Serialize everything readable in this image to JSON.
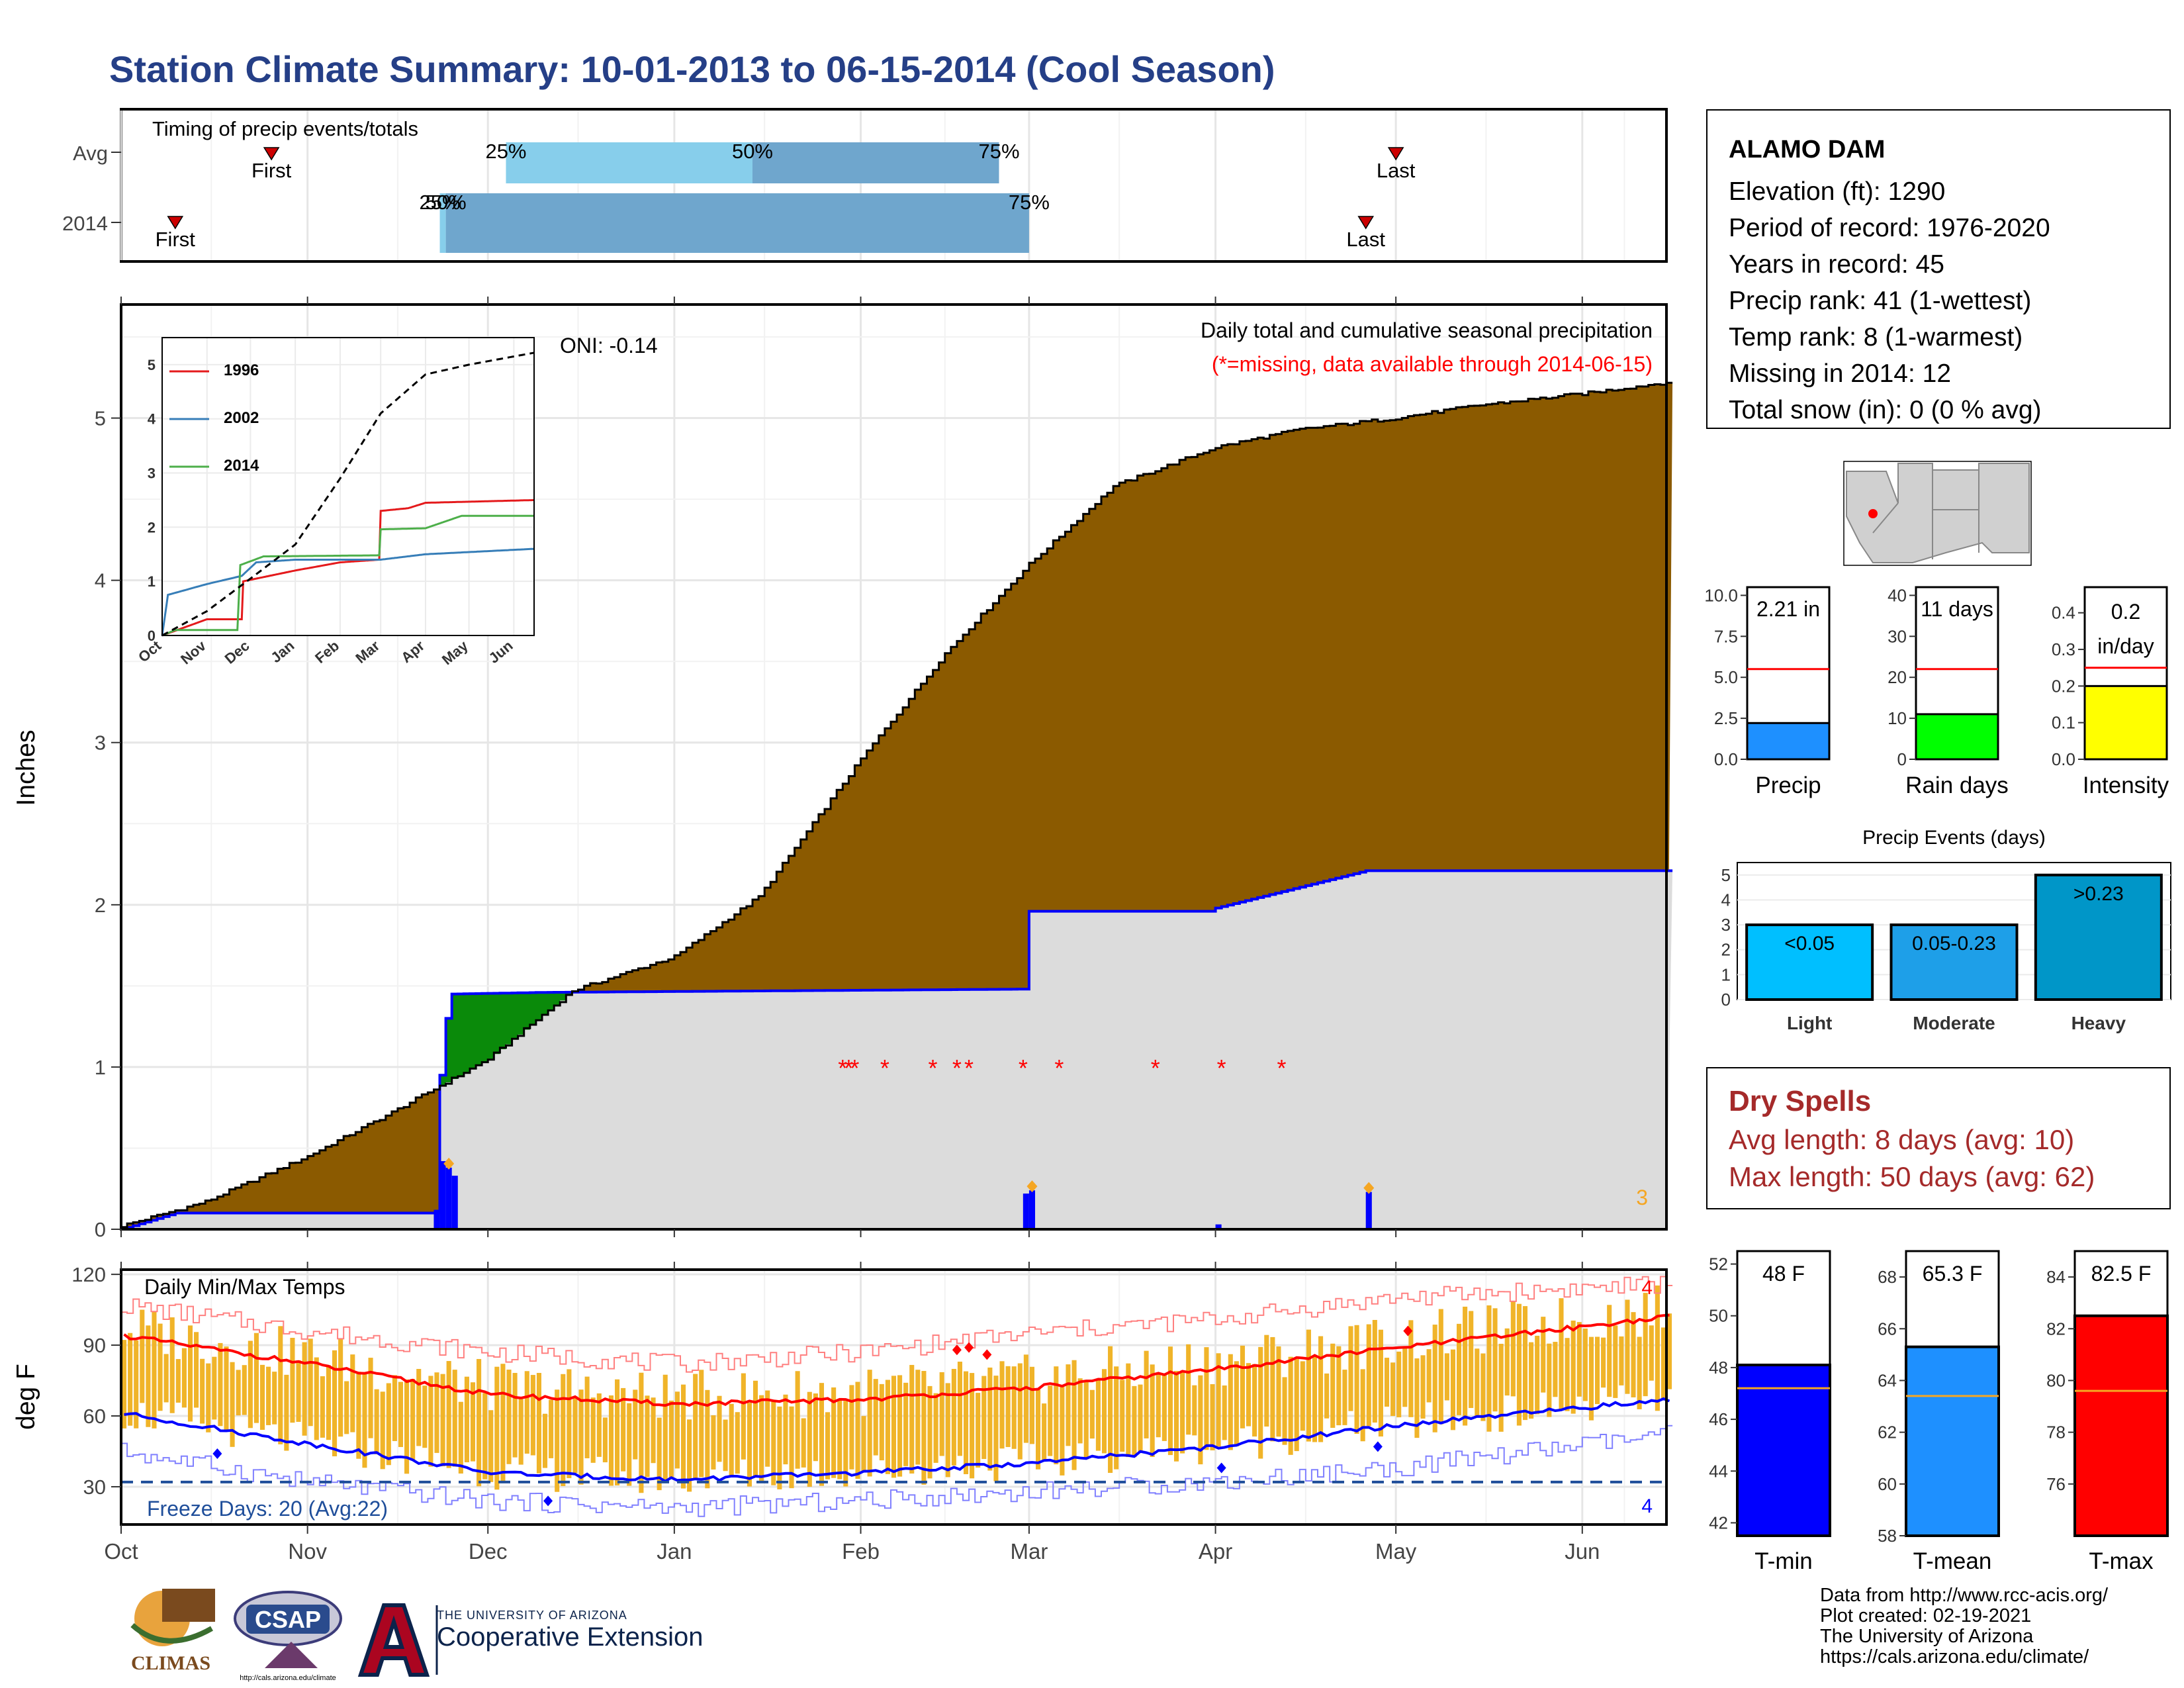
{
  "title": "Station Climate Summary: 10-01-2013 to 06-15-2014 (Cool Season)",
  "timing": {
    "heading": "Timing of precip events/totals",
    "rows": [
      {
        "label": "Avg",
        "first_label": "First",
        "last_label": "Last",
        "first_date": "2013-10-26",
        "last_date": "2014-05-01",
        "p25": "2013-12-04",
        "p50": "2014-01-14",
        "p75": "2014-02-24",
        "p25_label": "25%",
        "p50_label": "50%",
        "p75_label": "75%"
      },
      {
        "label": "2014",
        "first_label": "First",
        "last_label": "Last",
        "first_date": "2013-10-10",
        "last_date": "2014-04-26",
        "p25": "2013-11-23",
        "p50": "2013-11-24",
        "p75": "2014-03-01",
        "p25_label": "25%",
        "p50_label": "50%",
        "p75_label": "75%"
      }
    ]
  },
  "precip_panel": {
    "ylabel": "Inches",
    "yticks": [
      0,
      1,
      2,
      3,
      4,
      5
    ],
    "ylim": [
      0,
      5.7
    ],
    "oni": "ONI: -0.14",
    "legend_line1": "Daily total and cumulative seasonal precipitation",
    "legend_line2": "(*=missing, data available through 2014-06-15)",
    "count_label": "3",
    "colors": {
      "avg_fill": "#8b5a00",
      "surplus_fill": "#0a8a0a",
      "year_fill": "#dcdcdc",
      "year_line": "#0000ff",
      "missing": "#ff0000",
      "max_marker": "#f5a623"
    }
  },
  "inset": {
    "yticks": [
      0,
      1,
      2,
      3,
      4,
      5
    ],
    "xticks": [
      "Oct",
      "Nov",
      "Dec",
      "Jan",
      "Feb",
      "Mar",
      "Apr",
      "May",
      "Jun"
    ],
    "series": [
      {
        "name": "1996",
        "color": "#e41a1c"
      },
      {
        "name": "2002",
        "color": "#377eb8"
      },
      {
        "name": "2014",
        "color": "#4daf4a"
      }
    ]
  },
  "temp_panel": {
    "ylabel": "deg F",
    "heading": "Daily Min/Max Temps",
    "freeze_label": "Freeze Days: 20 (Avg:22)",
    "yticks": [
      30,
      60,
      90,
      120
    ],
    "ylim": [
      14,
      122
    ],
    "freeze_line": 32,
    "max_count": "4",
    "min_count": "4"
  },
  "xaxis": {
    "ticks": [
      "Oct",
      "Nov",
      "Dec",
      "Jan",
      "Feb",
      "Mar",
      "Apr",
      "May",
      "Jun"
    ],
    "start": "2013-10-01",
    "end": "2014-06-15"
  },
  "station": {
    "name": "ALAMO DAM",
    "lines": [
      "Elevation (ft): 1290",
      "Period of record: 1976-2020",
      "Years in record: 45",
      "Precip rank: 41 (1-wettest)",
      "Temp rank: 8 (1-warmest)",
      "Missing in 2014: 12",
      "Total snow (in): 0 (0 % avg)"
    ]
  },
  "summary_bars": [
    {
      "label": "Precip",
      "value_text": "2.21 in",
      "value": 2.21,
      "avg": 5.5,
      "yticks": [
        "0.0",
        "2.5",
        "5.0",
        "7.5",
        "10.0"
      ],
      "ymax": 10.5,
      "color": "#1e90ff"
    },
    {
      "label": "Rain days",
      "value_text": "11 days",
      "value": 11,
      "avg": 22,
      "yticks": [
        "0",
        "10",
        "20",
        "30",
        "40"
      ],
      "ymax": 42,
      "color": "#00ff00"
    },
    {
      "label": "Intensity",
      "value_text": "0.2 in/day",
      "value_text_1": "0.2",
      "value_text_2": "in/day",
      "value": 0.2,
      "avg": 0.25,
      "yticks": [
        "0.0",
        "0.1",
        "0.2",
        "0.3",
        "0.4"
      ],
      "ymax": 0.47,
      "color": "#ffff00"
    }
  ],
  "events": {
    "title": "Precip Events (days)",
    "yticks": [
      0,
      1,
      2,
      3,
      4,
      5
    ],
    "categories": [
      "Light",
      "Moderate",
      "Heavy"
    ],
    "labels": [
      "<0.05",
      "0.05-0.23",
      ">0.23"
    ],
    "values": [
      3,
      3,
      5
    ],
    "colors": [
      "#00bfff",
      "#1e9fe8",
      "#0096c8"
    ]
  },
  "dry_spells": {
    "heading": "Dry Spells",
    "avg_length": "Avg length: 8 days (avg: 10)",
    "max_length": "Max length: 50 days (avg: 62)"
  },
  "temp_bars": [
    {
      "label": "T-min",
      "value_text": "48 F",
      "value": 48.1,
      "avg": 47.2,
      "yticks": [
        42,
        44,
        46,
        48,
        50,
        52
      ],
      "ymin": 41.5,
      "ymax": 52.5,
      "color": "#0000ff"
    },
    {
      "label": "T-mean",
      "value_text": "65.3 F",
      "value": 65.3,
      "avg": 63.4,
      "yticks": [
        58,
        60,
        62,
        64,
        66,
        68
      ],
      "ymin": 58,
      "ymax": 69,
      "color": "#1e90ff"
    },
    {
      "label": "T-max",
      "value_text": "82.5 F",
      "value": 82.5,
      "avg": 79.6,
      "yticks": [
        76,
        78,
        80,
        82,
        84
      ],
      "ymin": 74,
      "ymax": 85,
      "color": "#ff0000"
    }
  ],
  "credits": [
    "Data from http://www.rcc-acis.org/",
    "Plot created: 02-19-2021",
    "The University of Arizona",
    "https://cals.arizona.edu/climate/"
  ],
  "logos": {
    "climas": "CLIMAS",
    "csap": "CSAP",
    "csap_url": "http://cals.arizona.edu/climate",
    "ua_small": "THE UNIVERSITY OF ARIZONA",
    "ua_big": "Cooperative Extension"
  },
  "chart_data": [
    {
      "type": "area",
      "title": "Daily total and cumulative seasonal precipitation",
      "ylabel": "Inches",
      "ylim": [
        0,
        5.7
      ],
      "avg_cumulative": {
        "x": [
          "2013-10-01",
          "2013-10-15",
          "2013-11-01",
          "2013-11-15",
          "2013-12-01",
          "2013-12-15",
          "2014-01-01",
          "2014-01-15",
          "2014-02-01",
          "2014-02-15",
          "2014-03-01",
          "2014-03-15",
          "2014-04-01",
          "2014-04-15",
          "2014-05-01",
          "2014-05-15",
          "2014-06-01",
          "2014-06-15"
        ],
        "y": [
          0.02,
          0.17,
          0.45,
          0.72,
          1.05,
          1.47,
          1.68,
          2.05,
          2.9,
          3.55,
          4.1,
          4.58,
          4.82,
          4.93,
          5.0,
          5.08,
          5.15,
          5.22
        ]
      },
      "year_cumulative": {
        "x": [
          "2013-10-01",
          "2013-10-10",
          "2013-11-22",
          "2013-11-23",
          "2013-11-24",
          "2013-11-25",
          "2013-12-10",
          "2014-02-28",
          "2014-03-01",
          "2014-03-31",
          "2014-04-01",
          "2014-04-26",
          "2014-06-15"
        ],
        "y": [
          0,
          0.1,
          0.1,
          0.95,
          1.3,
          1.45,
          1.46,
          1.48,
          1.96,
          1.96,
          1.98,
          2.21,
          2.21
        ]
      },
      "daily_bars": {
        "x": [
          "2013-11-22",
          "2013-11-23",
          "2013-11-24",
          "2013-11-25",
          "2014-02-28",
          "2014-03-01",
          "2014-04-01",
          "2014-04-26"
        ],
        "y": [
          0.12,
          0.42,
          0.38,
          0.33,
          0.22,
          0.24,
          0.03,
          0.23
        ]
      },
      "missing_days": [
        "2014-01-29",
        "2014-01-30",
        "2014-01-31",
        "2014-02-05",
        "2014-02-13",
        "2014-02-17",
        "2014-02-19",
        "2014-02-28",
        "2014-03-06",
        "2014-03-22",
        "2014-04-02",
        "2014-04-12"
      ]
    },
    {
      "type": "line",
      "title": "",
      "series": [
        {
          "name": "1996",
          "x": [
            "2013-10-01",
            "2013-11-01",
            "2013-11-25",
            "2013-11-26",
            "2014-01-01",
            "2014-02-01",
            "2014-02-28",
            "2014-03-01",
            "2014-03-20",
            "2014-04-01",
            "2014-06-15"
          ],
          "y": [
            0,
            0.3,
            0.3,
            1.0,
            1.2,
            1.35,
            1.4,
            2.3,
            2.35,
            2.45,
            2.5
          ]
        },
        {
          "name": "2002",
          "x": [
            "2013-10-01",
            "2013-10-05",
            "2013-11-01",
            "2013-11-25",
            "2013-12-05",
            "2014-01-01",
            "2014-03-01",
            "2014-04-01",
            "2014-06-15"
          ],
          "y": [
            0,
            0.75,
            0.95,
            1.1,
            1.35,
            1.4,
            1.4,
            1.5,
            1.6
          ]
        },
        {
          "name": "2014",
          "x": [
            "2013-10-01",
            "2013-10-10",
            "2013-11-22",
            "2013-11-24",
            "2013-12-10",
            "2014-02-28",
            "2014-03-01",
            "2014-04-01",
            "2014-04-26",
            "2014-06-15"
          ],
          "y": [
            0,
            0.1,
            0.1,
            1.3,
            1.46,
            1.48,
            1.96,
            1.98,
            2.21,
            2.21
          ]
        },
        {
          "name": "avg",
          "x": [
            "2013-10-01",
            "2013-11-01",
            "2013-12-01",
            "2014-01-01",
            "2014-02-01",
            "2014-03-01",
            "2014-04-01",
            "2014-05-01",
            "2014-06-15"
          ],
          "y": [
            0,
            0.45,
            1.05,
            1.68,
            2.9,
            4.1,
            4.82,
            5.0,
            5.22
          ]
        }
      ]
    },
    {
      "type": "line",
      "title": "Daily Min/Max Temps",
      "ylabel": "deg F",
      "ylim": [
        14,
        122
      ],
      "avg_max": {
        "x": [
          "2013-10-01",
          "2013-11-01",
          "2013-12-01",
          "2014-01-01",
          "2014-02-01",
          "2014-03-01",
          "2014-04-01",
          "2014-05-01",
          "2014-06-15"
        ],
        "y": [
          94,
          82,
          69,
          65,
          67,
          72,
          80,
          89,
          102
        ]
      },
      "avg_min": {
        "x": [
          "2013-10-01",
          "2013-11-01",
          "2013-12-01",
          "2014-01-01",
          "2014-02-01",
          "2014-03-01",
          "2014-04-01",
          "2014-05-01",
          "2014-06-15"
        ],
        "y": [
          61,
          48,
          36,
          33,
          36,
          40,
          47,
          56,
          67
        ]
      },
      "record_max": {
        "x": [
          "2013-10-01",
          "2013-11-01",
          "2013-12-01",
          "2014-01-01",
          "2014-02-01",
          "2014-03-01",
          "2014-04-01",
          "2014-05-01",
          "2014-06-15"
        ],
        "y": [
          107,
          96,
          87,
          82,
          87,
          95,
          101,
          110,
          116
        ]
      },
      "record_min": {
        "x": [
          "2013-10-01",
          "2013-11-01",
          "2013-12-01",
          "2014-01-01",
          "2014-02-01",
          "2014-03-01",
          "2014-04-01",
          "2014-05-01",
          "2014-06-15"
        ],
        "y": [
          45,
          32,
          24,
          21,
          24,
          28,
          32,
          38,
          52
        ]
      },
      "freeze_line": 32
    }
  ]
}
